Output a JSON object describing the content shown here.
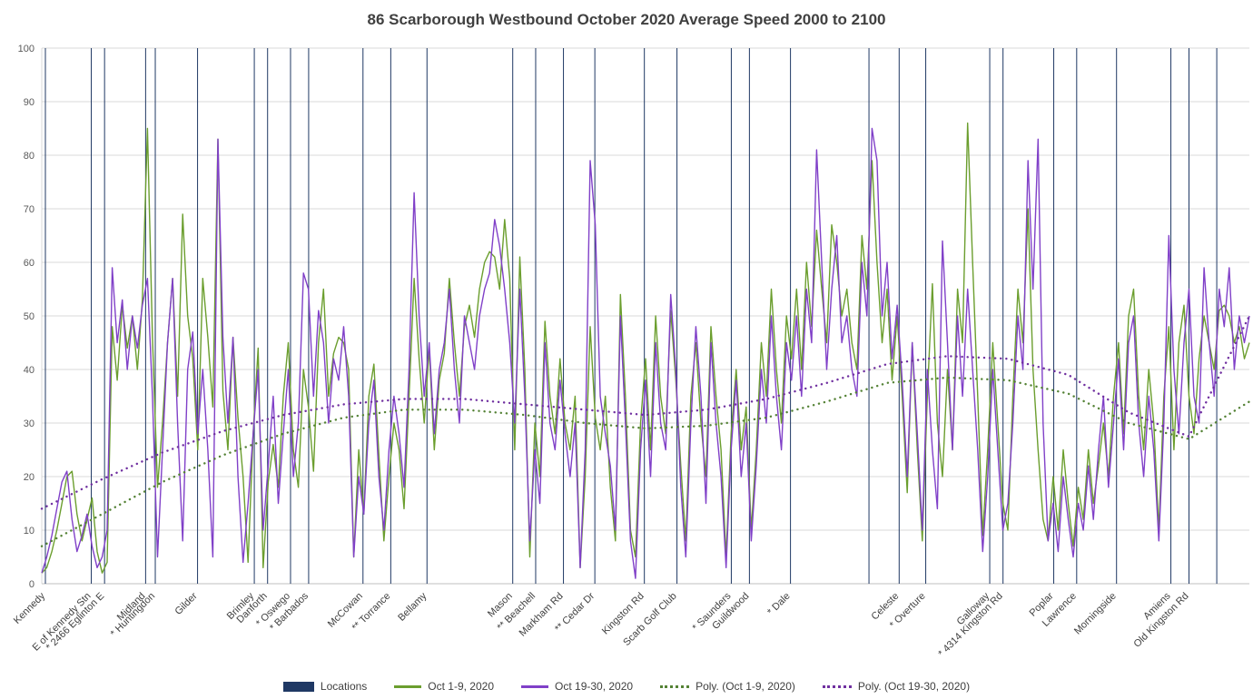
{
  "chart_data": {
    "type": "line",
    "title": "86 Scarborough Westbound October 2020 Average Speed 2000 to 2100",
    "xlabel": "",
    "ylabel": "",
    "ylim": [
      0,
      100
    ],
    "yticks": [
      0,
      10,
      20,
      30,
      40,
      50,
      60,
      70,
      80,
      90,
      100
    ],
    "grid": "horizontal",
    "legend_position": "bottom",
    "colors": {
      "locations": "#1f3864",
      "series_oct_1_9": "#6b9e2e",
      "series_oct_19_30": "#8040c8",
      "trend_oct_1_9": "#548235",
      "trend_oct_19_30": "#7030a0",
      "gridline": "#d9d9d9",
      "axis_line": "#bfbfbf",
      "tick_text": "#595959",
      "label_text": "#404040"
    },
    "locations": [
      {
        "label": "Kennedy",
        "pos": 0.003
      },
      {
        "label": "E of Kennedy Stn",
        "pos": 0.041
      },
      {
        "label": "* 2466 Eglinton E",
        "pos": 0.052
      },
      {
        "label": "Midland",
        "pos": 0.086
      },
      {
        "label": "* Huntingdon",
        "pos": 0.094
      },
      {
        "label": "Gilder",
        "pos": 0.129
      },
      {
        "label": "Brimley",
        "pos": 0.176
      },
      {
        "label": "Danforth",
        "pos": 0.187
      },
      {
        "label": "* Oswego",
        "pos": 0.206
      },
      {
        "label": "* Barbados",
        "pos": 0.221
      },
      {
        "label": "McCowan",
        "pos": 0.266
      },
      {
        "label": "** Torrance",
        "pos": 0.289
      },
      {
        "label": "Bellamy",
        "pos": 0.319
      },
      {
        "label": "Mason",
        "pos": 0.39
      },
      {
        "label": "** Beachell",
        "pos": 0.409
      },
      {
        "label": "Markham Rd",
        "pos": 0.432
      },
      {
        "label": "** Cedar Dr",
        "pos": 0.458
      },
      {
        "label": "Kingston Rd",
        "pos": 0.499
      },
      {
        "label": "Scarb Golf Club",
        "pos": 0.526
      },
      {
        "label": "* Saunders",
        "pos": 0.571
      },
      {
        "label": "Guildwood",
        "pos": 0.586
      },
      {
        "label": "* Dale",
        "pos": 0.62
      },
      {
        "label": "Celeste",
        "pos": 0.71
      },
      {
        "label": "* Overture",
        "pos": 0.732
      },
      {
        "label": "Galloway",
        "pos": 0.785
      },
      {
        "label": "* 4314 Kingston Rd",
        "pos": 0.796
      },
      {
        "label": "Poplar",
        "pos": 0.838
      },
      {
        "label": "Lawrence",
        "pos": 0.857
      },
      {
        "label": "Morningside",
        "pos": 0.89
      },
      {
        "label": "Amiens",
        "pos": 0.935
      },
      {
        "label": "Old Kingston Rd",
        "pos": 0.95
      }
    ],
    "extra_location_lines": [
      0.685,
      0.973
    ],
    "series": [
      {
        "name": "Oct 1-9, 2020",
        "values": [
          2,
          3,
          6,
          10,
          15,
          20,
          21,
          13,
          8,
          12,
          16,
          6,
          2,
          4,
          48,
          38,
          52,
          44,
          50,
          40,
          53,
          85,
          46,
          18,
          30,
          45,
          57,
          35,
          69,
          50,
          42,
          25,
          57,
          46,
          33,
          83,
          36,
          25,
          46,
          31,
          20,
          4,
          28,
          44,
          3,
          19,
          26,
          18,
          35,
          45,
          25,
          18,
          40,
          33,
          21,
          45,
          55,
          35,
          43,
          46,
          45,
          40,
          5,
          25,
          13,
          35,
          41,
          24,
          8,
          20,
          30,
          25,
          14,
          35,
          57,
          42,
          30,
          44,
          25,
          38,
          43,
          57,
          45,
          35,
          48,
          52,
          46,
          55,
          60,
          62,
          61,
          55,
          68,
          57,
          25,
          61,
          40,
          5,
          30,
          20,
          49,
          35,
          28,
          42,
          30,
          25,
          35,
          3,
          20,
          48,
          31,
          25,
          35,
          18,
          8,
          54,
          35,
          10,
          5,
          30,
          42,
          25,
          50,
          35,
          28,
          51,
          38,
          22,
          8,
          35,
          45,
          30,
          20,
          48,
          35,
          25,
          5,
          28,
          40,
          25,
          33,
          10,
          25,
          45,
          35,
          55,
          40,
          30,
          50,
          42,
          55,
          40,
          60,
          48,
          66,
          55,
          45,
          67,
          60,
          50,
          55,
          45,
          40,
          65,
          55,
          79,
          60,
          45,
          55,
          38,
          50,
          35,
          17,
          45,
          25,
          8,
          35,
          56,
          30,
          20,
          40,
          25,
          55,
          45,
          86,
          60,
          35,
          9,
          25,
          45,
          30,
          15,
          10,
          35,
          55,
          45,
          70,
          40,
          25,
          12,
          8,
          20,
          10,
          25,
          15,
          7,
          18,
          12,
          25,
          15,
          22,
          30,
          20,
          35,
          45,
          28,
          50,
          55,
          35,
          25,
          40,
          30,
          10,
          35,
          48,
          25,
          45,
          52,
          35,
          28,
          42,
          50,
          45,
          40,
          51,
          52,
          50,
          45,
          48,
          42,
          45
        ]
      },
      {
        "name": "Oct 19-30, 2020",
        "values": [
          2,
          5,
          9,
          14,
          19,
          21,
          12,
          6,
          9,
          13,
          7,
          3,
          5,
          10,
          59,
          45,
          53,
          40,
          50,
          44,
          52,
          57,
          35,
          5,
          25,
          45,
          57,
          30,
          8,
          40,
          47,
          28,
          40,
          25,
          5,
          83,
          46,
          30,
          46,
          20,
          4,
          15,
          28,
          40,
          10,
          22,
          35,
          15,
          28,
          40,
          20,
          30,
          58,
          55,
          35,
          51,
          45,
          30,
          42,
          38,
          48,
          35,
          5,
          20,
          13,
          30,
          38,
          20,
          10,
          25,
          35,
          28,
          18,
          40,
          73,
          50,
          35,
          45,
          28,
          40,
          45,
          55,
          40,
          30,
          50,
          45,
          40,
          50,
          55,
          58,
          68,
          63,
          55,
          45,
          30,
          55,
          35,
          8,
          25,
          15,
          45,
          30,
          25,
          38,
          28,
          20,
          30,
          3,
          25,
          79,
          67,
          35,
          28,
          22,
          10,
          50,
          30,
          8,
          1,
          25,
          38,
          20,
          45,
          30,
          25,
          54,
          40,
          18,
          5,
          30,
          48,
          35,
          15,
          45,
          30,
          20,
          3,
          25,
          38,
          20,
          30,
          8,
          22,
          40,
          30,
          50,
          35,
          25,
          45,
          38,
          50,
          35,
          55,
          45,
          81,
          60,
          40,
          55,
          65,
          45,
          50,
          40,
          35,
          60,
          50,
          85,
          79,
          50,
          60,
          42,
          52,
          38,
          20,
          45,
          28,
          10,
          40,
          25,
          14,
          64,
          45,
          25,
          50,
          35,
          55,
          40,
          25,
          6,
          20,
          40,
          25,
          10,
          15,
          30,
          50,
          40,
          79,
          55,
          83,
          30,
          8,
          15,
          6,
          20,
          12,
          5,
          15,
          10,
          22,
          12,
          25,
          35,
          18,
          30,
          42,
          25,
          45,
          50,
          30,
          20,
          35,
          25,
          8,
          30,
          65,
          40,
          28,
          45,
          55,
          35,
          30,
          59,
          45,
          35,
          55,
          48,
          59,
          40,
          50,
          45,
          50
        ]
      }
    ],
    "trendlines": [
      {
        "name": "Poly. (Oct 1-9, 2020)",
        "values": [
          7,
          13,
          19,
          24,
          28,
          31,
          32.5,
          32.5,
          31.5,
          30,
          29,
          29.5,
          31,
          34,
          37.5,
          38.5,
          38,
          35.5,
          30,
          27,
          34
        ]
      },
      {
        "name": "Poly. (Oct 19-30, 2020)",
        "values": [
          14,
          19.5,
          24.5,
          28.5,
          31.5,
          33.5,
          34.5,
          34.5,
          33.5,
          32.5,
          31.5,
          32.5,
          34.5,
          37.5,
          41,
          42.5,
          42,
          39,
          32,
          27.5,
          50
        ]
      }
    ],
    "legend": [
      {
        "label": "Locations"
      },
      {
        "label": "Oct 1-9, 2020"
      },
      {
        "label": "Oct 19-30, 2020"
      },
      {
        "label": "Poly. (Oct 1-9, 2020)"
      },
      {
        "label": "Poly. (Oct 19-30, 2020)"
      }
    ]
  }
}
